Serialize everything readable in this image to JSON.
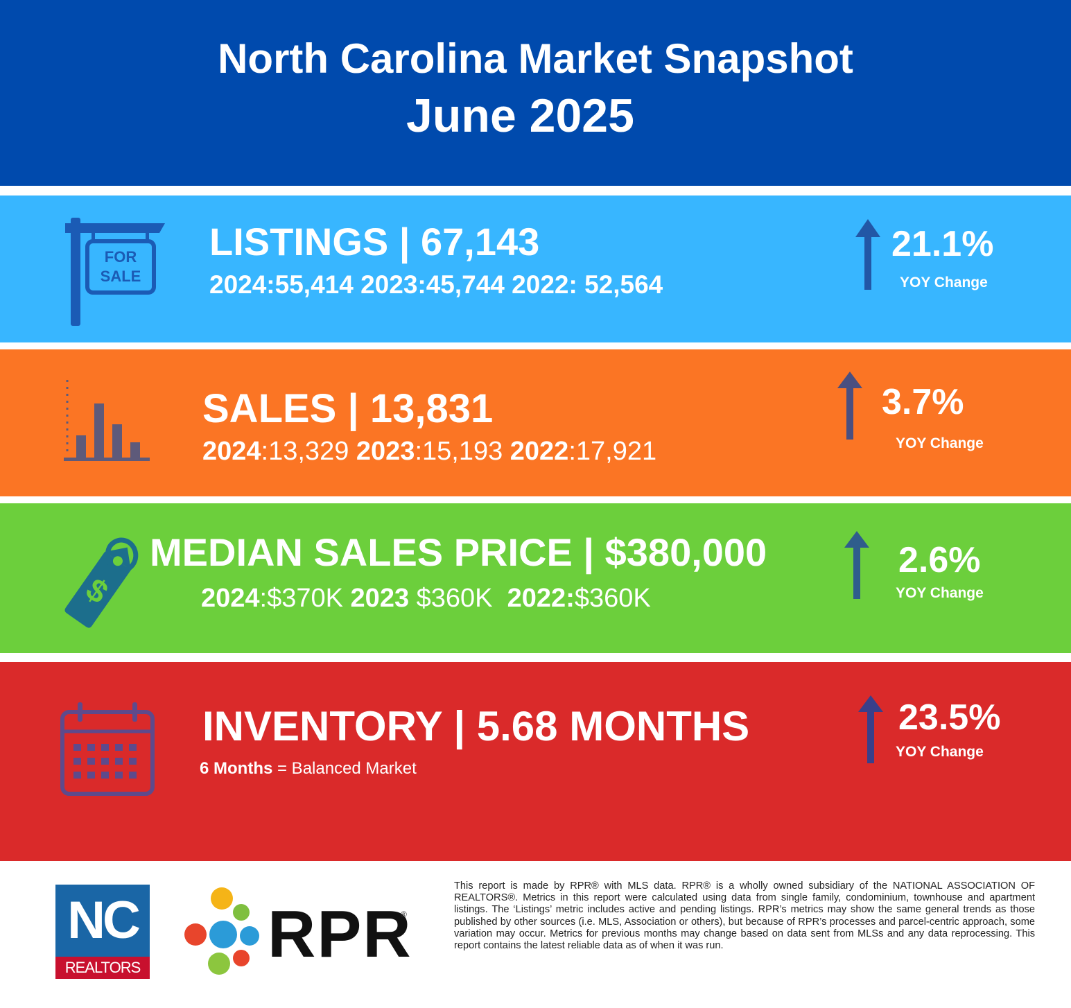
{
  "header": {
    "title": "North Carolina Market Snapshot",
    "date": "June 2025",
    "background": "#004aad"
  },
  "listings": {
    "icon": "for-sale-sign-icon",
    "sign_line1": "FOR",
    "sign_line2": "SALE",
    "headline": "LISTINGS | 67,143",
    "history": "2024:55,414 2023:45,744 2022: 52,564",
    "change": "21.1%",
    "change_label": "YOY Change",
    "direction": "up",
    "color": "#38b6ff"
  },
  "sales": {
    "icon": "bar-chart-icon",
    "headline": "SALES | 13,831",
    "history": [
      {
        "year": "2024",
        "value": ":13,329 "
      },
      {
        "year": "2023",
        "value": ":15,193 "
      },
      {
        "year": "2022",
        "value": ":17,921"
      }
    ],
    "change": "3.7%",
    "change_label": "YOY Change",
    "direction": "up",
    "color": "#fb7524"
  },
  "price": {
    "icon": "price-tag-icon",
    "headline": "MEDIAN SALES PRICE | $380,000",
    "history": [
      {
        "year": "2024",
        "value": ":$370K "
      },
      {
        "year": "2023",
        "value": " $360K  "
      },
      {
        "year": "2022:",
        "value": "$360K"
      }
    ],
    "change": "2.6%",
    "change_label": "YOY Change",
    "direction": "up",
    "color": "#6ccf3c"
  },
  "inventory": {
    "icon": "calendar-icon",
    "headline": "INVENTORY | 5.68 MONTHS",
    "note_bold": "6 Months",
    "note_rest": " = Balanced Market",
    "change": "23.5%",
    "change_label": "YOY Change",
    "direction": "up",
    "color": "#da2a2a"
  },
  "footer": {
    "nc_logo_top": "NC",
    "nc_logo_bottom": "REALTORS",
    "rpr_logo": "RPR",
    "rpr_reg": "®",
    "disclaimer": "This report is made by RPR® with MLS data. RPR® is a wholly owned subsidiary of the NATIONAL ASSOCIATION OF REALTORS®. Metrics in this report were calculated using data from single family, condominium, townhouse and apartment listings. The ‘Listings’ metric includes active and pending listings. RPR’s metrics may show the same general trends as those published by other sources (i.e. MLS, Association or others), but because of RPR’s processes and parcel-centric approach, some variation may occur. Metrics for previous months may change based on data sent from MLSs and any data reprocessing. This report contains the latest reliable data as of when it was run."
  }
}
